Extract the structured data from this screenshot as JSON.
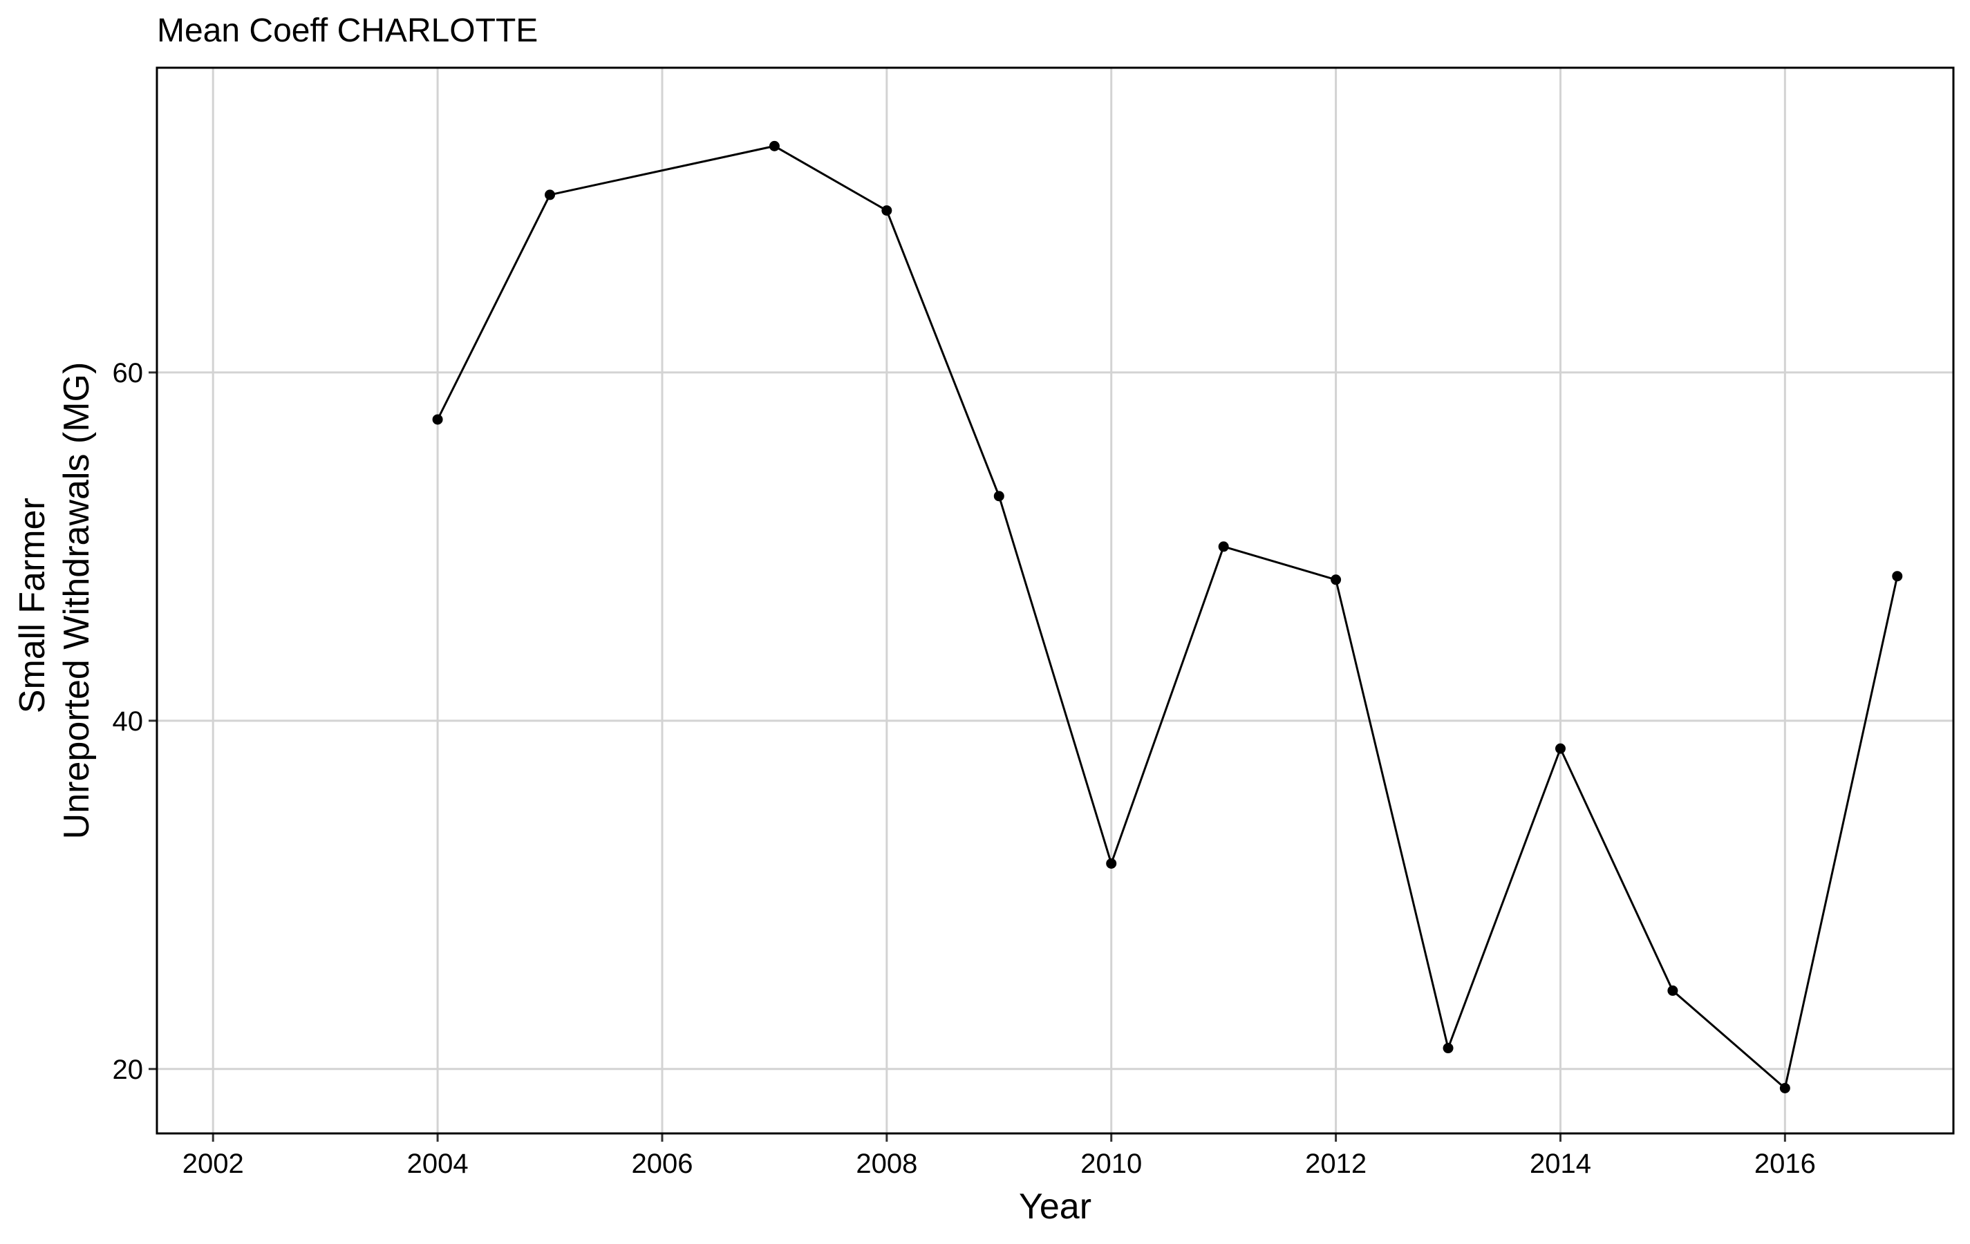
{
  "chart_data": {
    "type": "line",
    "title": "Mean Coeff CHARLOTTE",
    "xlabel": "Year",
    "ylabel": [
      "Small Farmer",
      "Unreported Withdrawals (MG)"
    ],
    "xlim": [
      2001.5,
      2017.5
    ],
    "ylim": [
      16.3,
      77.5
    ],
    "x_ticks": [
      2002,
      2004,
      2006,
      2008,
      2010,
      2012,
      2014,
      2016
    ],
    "y_ticks": [
      20,
      40,
      60
    ],
    "grid": true,
    "legend": "none",
    "series": [
      {
        "color": "#000000",
        "x": [
          2004,
          2005,
          2007,
          2008,
          2009,
          2010,
          2011,
          2012,
          2013,
          2014,
          2015,
          2016,
          2017
        ],
        "y": [
          57.3,
          70.2,
          73.0,
          69.3,
          52.9,
          31.8,
          50.0,
          48.1,
          21.2,
          38.4,
          24.5,
          18.9,
          48.3
        ]
      }
    ]
  }
}
